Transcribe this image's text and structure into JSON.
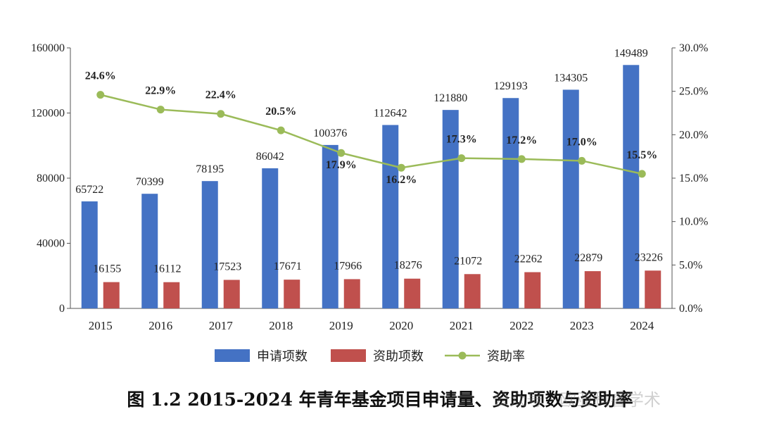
{
  "chart_data": {
    "type": "bar",
    "categories": [
      "2015",
      "2016",
      "2017",
      "2018",
      "2019",
      "2020",
      "2021",
      "2022",
      "2023",
      "2024"
    ],
    "series": [
      {
        "name": "申请项数",
        "kind": "bar",
        "axis": "left",
        "color": "#4472C4",
        "values": [
          65722,
          70399,
          78195,
          86042,
          100376,
          112642,
          121880,
          129193,
          134305,
          149489
        ]
      },
      {
        "name": "资助项数",
        "kind": "bar",
        "axis": "left",
        "color": "#C0504D",
        "values": [
          16155,
          16112,
          17523,
          17671,
          17966,
          18276,
          21072,
          22262,
          22879,
          23226
        ]
      },
      {
        "name": "资助率",
        "kind": "line",
        "axis": "right",
        "color": "#9BBB59",
        "values": [
          24.6,
          22.9,
          22.4,
          20.5,
          17.9,
          16.2,
          17.3,
          17.2,
          17.0,
          15.5
        ],
        "labels": [
          "24.6%",
          "22.9%",
          "22.4%",
          "20.5%",
          "17.9%",
          "16.2%",
          "17.3%",
          "17.2%",
          "17.0%",
          "15.5%"
        ]
      }
    ],
    "y_left": {
      "ylim": [
        0,
        160000
      ],
      "ticks": [
        "0",
        "40000",
        "80000",
        "120000",
        "160000"
      ]
    },
    "y_right": {
      "ylim": [
        0,
        30
      ],
      "ticks": [
        "0.0%",
        "5.0%",
        "10.0%",
        "15.0%",
        "20.0%",
        "25.0%",
        "30.0%"
      ]
    },
    "legend_position": "bottom",
    "grid": false,
    "title": "图 1.2 2015-2024 年青年基金项目申请量、资助项数与资助率"
  },
  "watermark": "公众号 · 欧亚科睿学术"
}
